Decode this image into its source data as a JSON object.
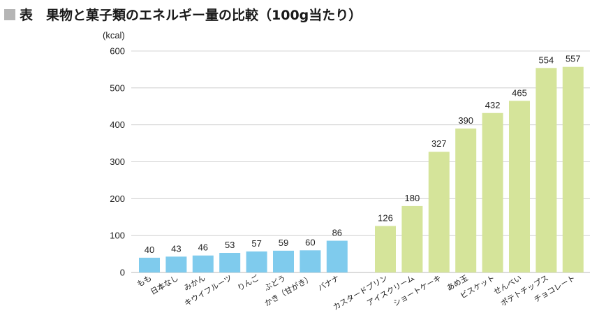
{
  "title": "表　果物と菓子類のエネルギー量の比較（100g当たり）",
  "colors": {
    "fruit": "#7fcbed",
    "sweets": "#d5e49a",
    "title_marker": "#b5b5b5",
    "grid": "#c8c8c8"
  },
  "chart_data": {
    "type": "bar",
    "title": "表　果物と菓子類のエネルギー量の比較（100g当たり）",
    "ylabel": "(kcal)",
    "xlabel": "",
    "ylim": [
      0,
      600
    ],
    "yticks": [
      0,
      100,
      200,
      300,
      400,
      500,
      600
    ],
    "grid": true,
    "legend": "none",
    "groups": [
      {
        "color": "#7fcbed",
        "categories": [
          "もも",
          "日本なし",
          "みかん",
          "キウイフルーツ",
          "りんご",
          "ぶどう",
          "かき（甘がき）",
          "バナナ"
        ],
        "values": [
          40,
          43,
          46,
          53,
          57,
          59,
          60,
          86
        ]
      },
      {
        "color": "#d5e49a",
        "categories": [
          "カスタードプリン",
          "アイスクリーム",
          "ショートケーキ",
          "あめ玉",
          "ビスケット",
          "せんべい",
          "ポテトチップス",
          "チョコレート"
        ],
        "values": [
          126,
          180,
          327,
          390,
          432,
          465,
          554,
          557
        ]
      }
    ]
  }
}
